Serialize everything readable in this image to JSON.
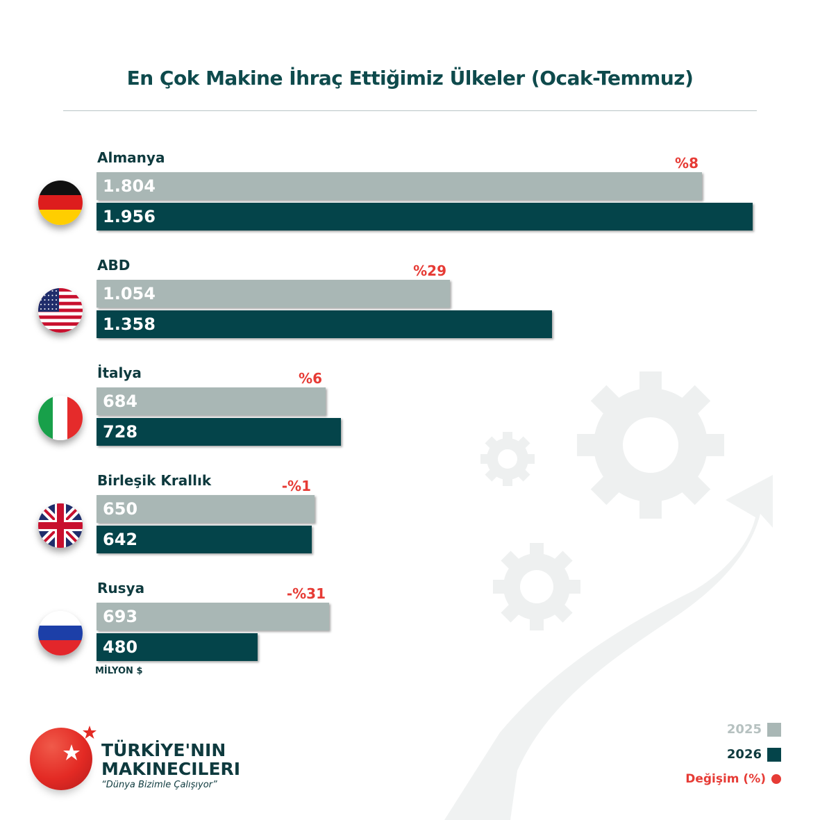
{
  "title": "En Çok Makine İhraç Ettiğimiz Ülkeler (Ocak-Temmuz)",
  "unit_label": "MİLYON $",
  "legend": {
    "y2025": "2025",
    "y2026": "2026",
    "change": "Değişim (%)"
  },
  "colors": {
    "y2025": "#a9b7b5",
    "y2026": "#04444a",
    "change": "#e63b35",
    "title": "#0e4a4c"
  },
  "logo": {
    "line1": "TÜRKİYE'NIN",
    "line2": "MAKINECILERI",
    "tagline": "“Dünya Bizimle Çalışıyor”"
  },
  "chart_data": {
    "type": "bar",
    "orientation": "horizontal",
    "title": "En Çok Makine İhraç Ettiğimiz Ülkeler (Ocak-Temmuz)",
    "unit": "MİLYON $",
    "categories": [
      "Almanya",
      "ABD",
      "İtalya",
      "Birleşik Krallık",
      "Rusya"
    ],
    "flags": [
      "germany-flag-icon",
      "usa-flag-icon",
      "italy-flag-icon",
      "uk-flag-icon",
      "russia-flag-icon"
    ],
    "series": [
      {
        "name": "2025",
        "values": [
          1804,
          1054,
          684,
          650,
          693
        ],
        "labels": [
          "1.804",
          "1.054",
          "684",
          "650",
          "693"
        ]
      },
      {
        "name": "2026",
        "values": [
          1956,
          1358,
          728,
          642,
          480
        ],
        "labels": [
          "1.956",
          "1.358",
          "728",
          "642",
          "480"
        ]
      }
    ],
    "change_labels": [
      "%8",
      "%29",
      "%6",
      "-%1",
      "-%31"
    ],
    "legend": "bottom-right",
    "grid": false
  }
}
